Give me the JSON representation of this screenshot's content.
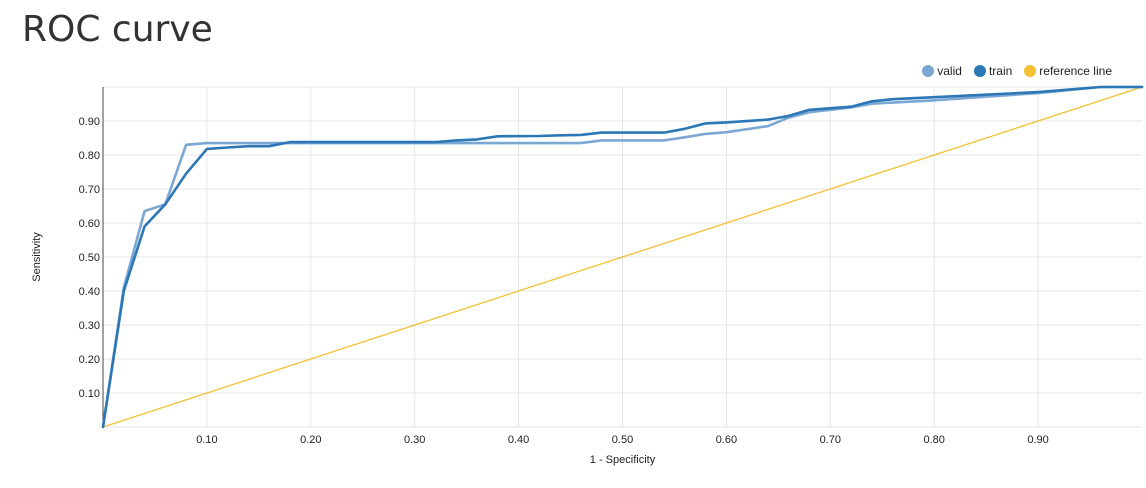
{
  "page": {
    "title": "ROC curve"
  },
  "colors": {
    "valid": "#7ba7d3",
    "train": "#2c77b5",
    "reference": "#f5c132",
    "grid": "#e6e6e6",
    "axis": "#444444"
  },
  "chart_data": {
    "type": "line",
    "title": "ROC curve",
    "xlabel": "1 - Specificity",
    "ylabel": "Sensitivity",
    "xlim": [
      0,
      1
    ],
    "ylim": [
      0,
      1
    ],
    "x_ticks": [
      "0.10",
      "0.20",
      "0.30",
      "0.40",
      "0.50",
      "0.60",
      "0.70",
      "0.80",
      "0.90"
    ],
    "y_ticks": [
      "0.10",
      "0.20",
      "0.30",
      "0.40",
      "0.50",
      "0.60",
      "0.70",
      "0.80",
      "0.90"
    ],
    "grid": true,
    "legend_position": "top-right",
    "legend": [
      "valid",
      "train",
      "reference line"
    ],
    "series": [
      {
        "name": "valid",
        "color": "#7ba7d3",
        "points": [
          [
            0,
            0
          ],
          [
            0.02,
            0.41
          ],
          [
            0.04,
            0.635
          ],
          [
            0.06,
            0.655
          ],
          [
            0.08,
            0.83
          ],
          [
            0.1,
            0.835
          ],
          [
            0.14,
            0.835
          ],
          [
            0.18,
            0.835
          ],
          [
            0.2,
            0.835
          ],
          [
            0.3,
            0.835
          ],
          [
            0.4,
            0.835
          ],
          [
            0.46,
            0.835
          ],
          [
            0.48,
            0.843
          ],
          [
            0.54,
            0.843
          ],
          [
            0.56,
            0.852
          ],
          [
            0.58,
            0.862
          ],
          [
            0.6,
            0.867
          ],
          [
            0.64,
            0.885
          ],
          [
            0.66,
            0.91
          ],
          [
            0.68,
            0.926
          ],
          [
            0.72,
            0.94
          ],
          [
            0.74,
            0.951
          ],
          [
            0.8,
            0.961
          ],
          [
            0.9,
            0.982
          ],
          [
            0.96,
            1.0
          ],
          [
            1.0,
            1.0
          ]
        ]
      },
      {
        "name": "train",
        "color": "#2c77b5",
        "points": [
          [
            0,
            0
          ],
          [
            0.02,
            0.4
          ],
          [
            0.04,
            0.59
          ],
          [
            0.06,
            0.655
          ],
          [
            0.08,
            0.745
          ],
          [
            0.1,
            0.818
          ],
          [
            0.12,
            0.822
          ],
          [
            0.14,
            0.826
          ],
          [
            0.16,
            0.826
          ],
          [
            0.18,
            0.838
          ],
          [
            0.2,
            0.838
          ],
          [
            0.32,
            0.838
          ],
          [
            0.34,
            0.843
          ],
          [
            0.36,
            0.846
          ],
          [
            0.38,
            0.855
          ],
          [
            0.42,
            0.856
          ],
          [
            0.44,
            0.858
          ],
          [
            0.46,
            0.859
          ],
          [
            0.48,
            0.866
          ],
          [
            0.54,
            0.866
          ],
          [
            0.56,
            0.877
          ],
          [
            0.58,
            0.893
          ],
          [
            0.6,
            0.896
          ],
          [
            0.64,
            0.904
          ],
          [
            0.66,
            0.915
          ],
          [
            0.68,
            0.933
          ],
          [
            0.72,
            0.942
          ],
          [
            0.74,
            0.958
          ],
          [
            0.76,
            0.964
          ],
          [
            0.8,
            0.97
          ],
          [
            0.9,
            0.985
          ],
          [
            0.96,
            1.0
          ],
          [
            1.0,
            1.0
          ]
        ]
      },
      {
        "name": "reference line",
        "color": "#f5c132",
        "points": [
          [
            0,
            0
          ],
          [
            1,
            1
          ]
        ]
      }
    ]
  }
}
